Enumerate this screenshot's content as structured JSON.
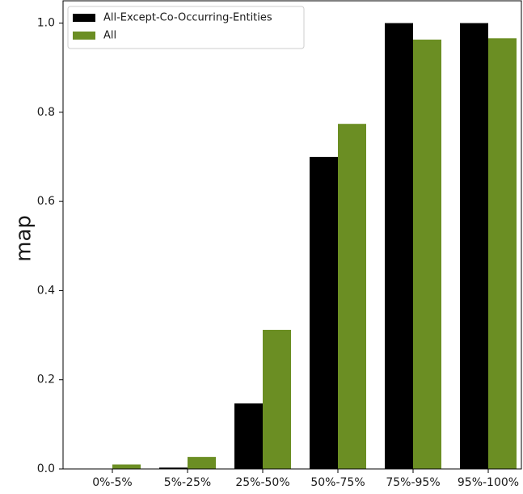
{
  "chart_data": {
    "type": "bar",
    "title": "",
    "xlabel": "",
    "ylabel": "map",
    "categories": [
      "0%-5%",
      "5%-25%",
      "25%-50%",
      "50%-75%",
      "75%-95%",
      "95%-100%"
    ],
    "series": [
      {
        "name": "All-Except-Co-Occurring-Entities",
        "color": "#000000",
        "values": [
          0.0,
          0.003,
          0.147,
          0.7,
          1.0,
          1.0
        ]
      },
      {
        "name": "All",
        "color": "#6b8e23",
        "values": [
          0.01,
          0.027,
          0.312,
          0.774,
          0.963,
          0.966
        ]
      }
    ],
    "ylim": [
      0,
      1.05
    ],
    "yticks": [
      "0.0",
      "0.2",
      "0.4",
      "0.6",
      "0.8",
      "1.0"
    ],
    "grid": false,
    "legend_position": "top-left"
  }
}
